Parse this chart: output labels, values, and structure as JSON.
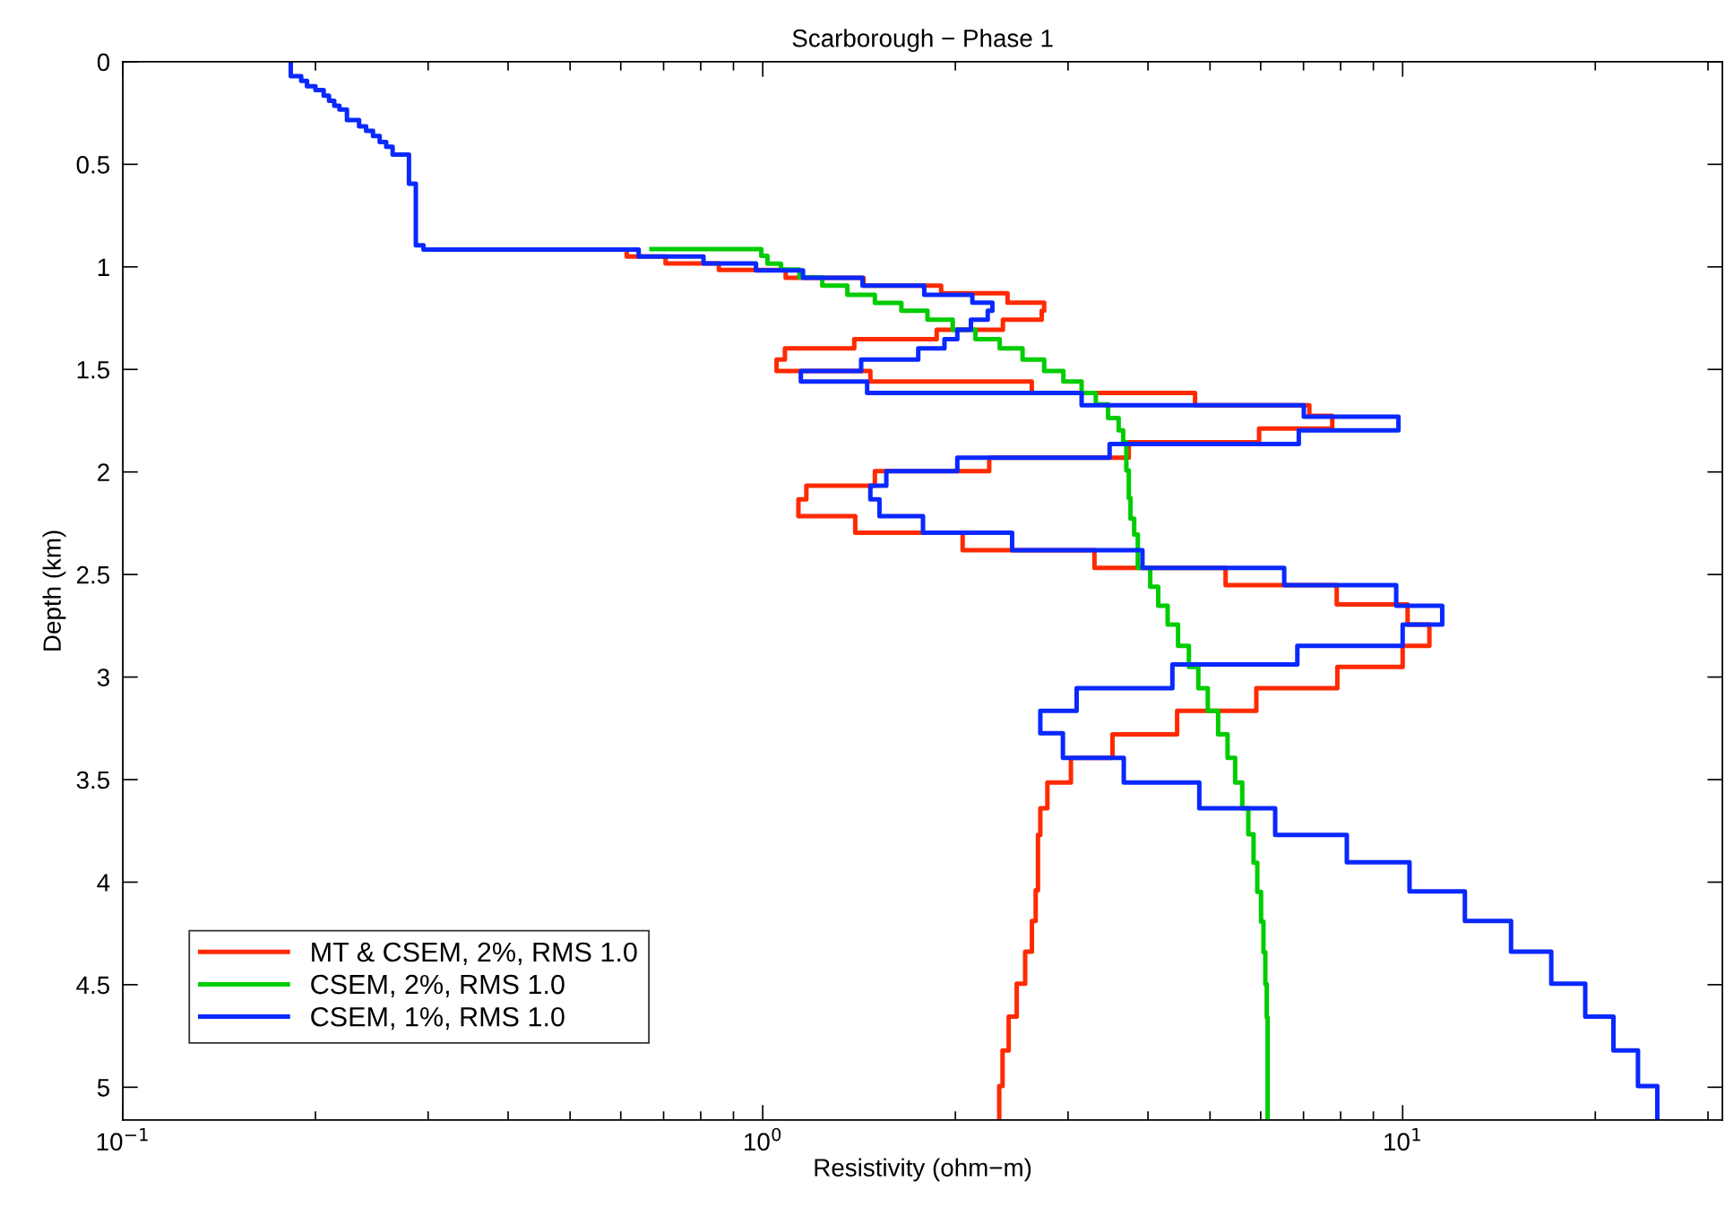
{
  "chart_data": {
    "type": "step",
    "title": "Scarborough − Phase 1",
    "xlabel": "Resistivity (ohm−m)",
    "ylabel": "Depth (km)",
    "log": "x",
    "grid": false,
    "legend": "bottom left",
    "line_style": "solid",
    "marker": "none",
    "xlim": [
      0.1,
      31.6
    ],
    "xticks": [
      {
        "value": 0.1,
        "label": "10$^{−1}$"
      },
      {
        "value": 1,
        "label": "10$^{0}$"
      },
      {
        "value": 10,
        "label": "10$^{1}$"
      }
    ],
    "ylim": [
      5.16,
      0
    ],
    "yticks": [
      0,
      0.5,
      1,
      1.5,
      2,
      2.5,
      3,
      3.5,
      4,
      4.5,
      5
    ],
    "series": [
      {
        "name": "MT & CSEM, 2%, RMS 1.0",
        "color": "#ff2a00",
        "x": [
          0.613,
          0.705,
          0.854,
          1.086,
          1.437,
          1.9,
          2.413,
          2.753,
          2.729,
          2.373,
          1.87,
          1.39,
          1.083,
          1.051,
          1.473,
          2.633,
          4.738,
          7.148,
          7.762,
          5.966,
          3.733,
          2.259,
          1.497,
          1.17,
          1.137,
          1.395,
          2.053,
          3.299,
          5.288,
          7.888,
          10.18,
          11.01,
          10.0,
          7.906,
          5.907,
          4.442,
          3.52,
          3.031,
          2.785,
          2.715,
          2.692,
          2.67,
          2.634,
          2.571,
          2.494,
          2.423,
          2.37,
          2.342,
          2.342
        ],
        "values": [
          0.916,
          0.95,
          0.983,
          1.015,
          1.053,
          1.091,
          1.129,
          1.174,
          1.214,
          1.258,
          1.307,
          1.352,
          1.397,
          1.452,
          1.508,
          1.559,
          1.615,
          1.675,
          1.726,
          1.788,
          1.855,
          1.93,
          1.996,
          2.067,
          2.134,
          2.216,
          2.296,
          2.381,
          2.468,
          2.552,
          2.646,
          2.744,
          2.848,
          2.951,
          3.054,
          3.165,
          3.279,
          3.394,
          3.514,
          3.64,
          3.77,
          4.04,
          4.189,
          4.339,
          4.495,
          4.656,
          4.821,
          4.994,
          5.16
        ]
      },
      {
        "name": "CSEM, 2%, RMS 1.0",
        "color": "#00cc00",
        "type": "line",
        "x": [
          0.67,
          0.995,
          0.995,
          1.017,
          1.017,
          1.068,
          1.068,
          1.141,
          1.141,
          1.239,
          1.239,
          1.356,
          1.356,
          1.497,
          1.497,
          1.647,
          1.647,
          1.809,
          1.809,
          1.981,
          1.981,
          2.15,
          2.15,
          2.346,
          2.346,
          2.547,
          2.547,
          2.753,
          2.753,
          2.95,
          2.95,
          3.15,
          3.15,
          3.315,
          3.315,
          3.465,
          3.465,
          3.599,
          3.599,
          3.658,
          3.658,
          3.7,
          3.7,
          3.733,
          3.733,
          3.756,
          3.756,
          3.806,
          3.806,
          3.856,
          3.856,
          4.032,
          4.032,
          4.15,
          4.15,
          4.293,
          4.293,
          4.457,
          4.457,
          4.634,
          4.634,
          4.794,
          4.794,
          4.96,
          4.96,
          5.148,
          5.148,
          5.326,
          5.326,
          5.473,
          5.473,
          5.615,
          5.615,
          5.739,
          5.739,
          5.848,
          5.848,
          5.927,
          5.927,
          6.008,
          6.008,
          6.06,
          6.06,
          6.101,
          6.101,
          6.132,
          6.132,
          6.152,
          6.152
        ],
        "values": [
          0.913,
          0.913,
          0.946,
          0.946,
          0.984,
          0.984,
          1.013,
          1.013,
          1.051,
          1.051,
          1.091,
          1.091,
          1.136,
          1.136,
          1.176,
          1.176,
          1.214,
          1.214,
          1.258,
          1.258,
          1.307,
          1.307,
          1.352,
          1.352,
          1.397,
          1.397,
          1.452,
          1.452,
          1.508,
          1.508,
          1.559,
          1.559,
          1.615,
          1.615,
          1.67,
          1.67,
          1.737,
          1.737,
          1.797,
          1.797,
          1.855,
          1.855,
          1.993,
          1.993,
          2.127,
          2.127,
          2.228,
          2.228,
          2.305,
          2.305,
          2.468,
          2.468,
          2.56,
          2.56,
          2.652,
          2.652,
          2.744,
          2.744,
          2.848,
          2.848,
          2.951,
          2.951,
          3.054,
          3.054,
          3.165,
          3.165,
          3.279,
          3.279,
          3.394,
          3.394,
          3.514,
          3.514,
          3.64,
          3.64,
          3.767,
          3.767,
          3.905,
          3.905,
          4.047,
          4.047,
          4.192,
          4.192,
          4.341,
          4.341,
          4.497,
          4.497,
          4.659,
          4.659,
          5.16
        ]
      },
      {
        "name": "CSEM, 1%, RMS 1.0",
        "color": "#0a28ff",
        "x": [
          0.183,
          0.19,
          0.194,
          0.2,
          0.206,
          0.21,
          0.214,
          0.218,
          0.224,
          0.234,
          0.24,
          0.246,
          0.252,
          0.258,
          0.264,
          0.28,
          0.287,
          0.295,
          0.64,
          0.808,
          0.976,
          1.156,
          1.432,
          1.788,
          2.126,
          2.285,
          2.247,
          2.115,
          2.014,
          1.923,
          1.75,
          1.425,
          1.147,
          1.456,
          3.15,
          7.007,
          9.85,
          6.882,
          3.484,
          2.014,
          1.56,
          1.473,
          1.522,
          1.78,
          2.453,
          3.921,
          6.53,
          9.77,
          11.53,
          10.0,
          6.846,
          4.367,
          3.094,
          2.715,
          2.945,
          3.666,
          4.811,
          6.321,
          8.18,
          10.25,
          12.51,
          14.77,
          17.07,
          19.29,
          21.35,
          23.32,
          25.0,
          25.0
        ],
        "values": [
          0,
          0.07,
          0.093,
          0.119,
          0.138,
          0.165,
          0.19,
          0.214,
          0.233,
          0.284,
          0.315,
          0.337,
          0.362,
          0.391,
          0.414,
          0.453,
          0.595,
          0.895,
          0.916,
          0.95,
          0.983,
          1.017,
          1.053,
          1.091,
          1.136,
          1.174,
          1.214,
          1.258,
          1.307,
          1.352,
          1.397,
          1.452,
          1.508,
          1.559,
          1.615,
          1.675,
          1.731,
          1.797,
          1.864,
          1.93,
          1.996,
          2.067,
          2.134,
          2.216,
          2.296,
          2.381,
          2.468,
          2.552,
          2.652,
          2.744,
          2.848,
          2.939,
          3.054,
          3.165,
          3.274,
          3.394,
          3.514,
          3.64,
          3.77,
          3.903,
          4.045,
          4.189,
          4.339,
          4.495,
          4.656,
          4.821,
          4.994,
          5.16
        ]
      }
    ]
  }
}
